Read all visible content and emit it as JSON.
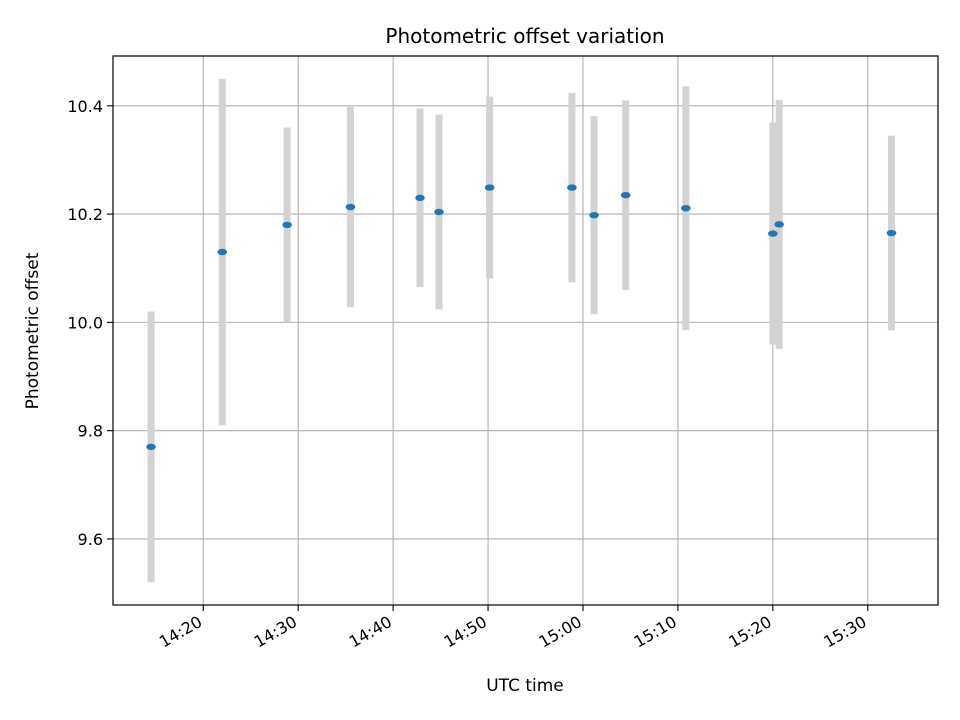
{
  "chart_data": {
    "type": "scatter",
    "title": "Photometric offset variation",
    "xlabel": "UTC time",
    "ylabel": "Photometric offset",
    "x_tick_labels": [
      "14:20",
      "14:30",
      "14:40",
      "14:50",
      "15:00",
      "15:10",
      "15:20",
      "15:30"
    ],
    "x_tick_minutes": [
      860,
      870,
      880,
      890,
      900,
      910,
      920,
      930
    ],
    "y_ticks": [
      9.6,
      9.8,
      10.0,
      10.2,
      10.4
    ],
    "y_tick_labels": [
      "9.6",
      "9.8",
      "10.0",
      "10.2",
      "10.4"
    ],
    "grid": true,
    "colors": {
      "points": "#1f77b4",
      "errorbars": "#d3d3d3",
      "grid": "#b0b0b0"
    },
    "series": [
      {
        "points": [
          {
            "time": "14:14:30",
            "y": 9.77,
            "err": 0.25
          },
          {
            "time": "14:22:00",
            "y": 10.13,
            "err": 0.32
          },
          {
            "time": "14:28:50",
            "y": 10.18,
            "err": 0.18
          },
          {
            "time": "14:35:30",
            "y": 10.213,
            "err": 0.185
          },
          {
            "time": "14:42:50",
            "y": 10.23,
            "err": 0.165
          },
          {
            "time": "14:44:50",
            "y": 10.204,
            "err": 0.18
          },
          {
            "time": "14:50:10",
            "y": 10.249,
            "err": 0.168
          },
          {
            "time": "14:58:50",
            "y": 10.249,
            "err": 0.175
          },
          {
            "time": "15:01:10",
            "y": 10.198,
            "err": 0.183
          },
          {
            "time": "15:04:30",
            "y": 10.235,
            "err": 0.175
          },
          {
            "time": "15:10:50",
            "y": 10.211,
            "err": 0.225
          },
          {
            "time": "15:20:00",
            "y": 10.164,
            "err": 0.205
          },
          {
            "time": "15:20:40",
            "y": 10.181,
            "err": 0.23
          },
          {
            "time": "15:32:30",
            "y": 10.165,
            "err": 0.18
          }
        ]
      }
    ]
  }
}
